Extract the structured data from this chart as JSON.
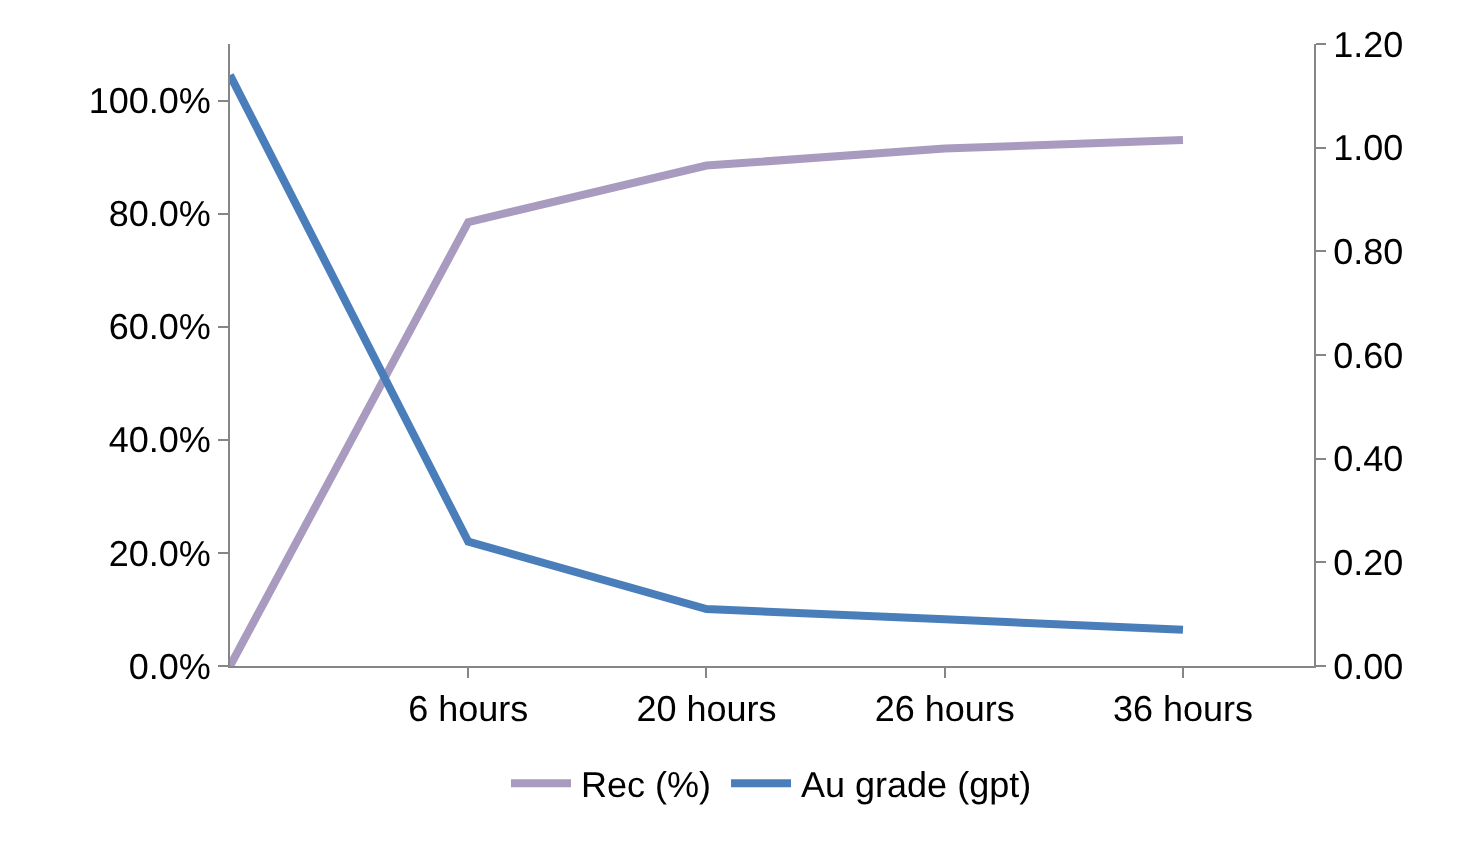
{
  "chart_data": {
    "type": "line",
    "categories": [
      null,
      "6 hours",
      "20 hours",
      "26 hours",
      "36 hours"
    ],
    "series": [
      {
        "name": "Rec (%)",
        "color": "#a99bc0",
        "values": [
          0,
          78.5,
          88.5,
          91.5,
          93
        ]
      },
      {
        "name": "Au grade (gpt)",
        "color": "#4a7ebb",
        "axis": "y2",
        "values": [
          1.14,
          0.24,
          0.11,
          0.09,
          0.07
        ]
      }
    ],
    "ylim": [
      0,
      110
    ],
    "yticks": [
      {
        "value": 0,
        "label": "0.0%"
      },
      {
        "value": 20,
        "label": "20.0%"
      },
      {
        "value": 40,
        "label": "40.0%"
      },
      {
        "value": 60,
        "label": "60.0%"
      },
      {
        "value": 80,
        "label": "80.0%"
      },
      {
        "value": 100,
        "label": "100.0%"
      }
    ],
    "y2lim": [
      0,
      1.2
    ],
    "y2ticks": [
      {
        "value": 0,
        "label": "0.00"
      },
      {
        "value": 0.2,
        "label": "0.20"
      },
      {
        "value": 0.4,
        "label": "0.40"
      },
      {
        "value": 0.6,
        "label": "0.60"
      },
      {
        "value": 0.8,
        "label": "0.80"
      },
      {
        "value": 1.0,
        "label": "1.00"
      },
      {
        "value": 1.2,
        "label": "1.20"
      }
    ],
    "legend": "bottom",
    "marker": "none",
    "line_style": "solid"
  }
}
